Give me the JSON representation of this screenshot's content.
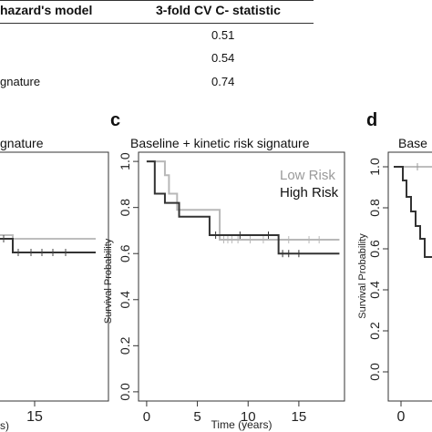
{
  "table": {
    "col1_header": "hazard's model",
    "col2_header": "3-fold CV C- statistic",
    "rows": [
      {
        "label": "",
        "value": "0.51"
      },
      {
        "label": "",
        "value": "0.54"
      },
      {
        "label": "gnature",
        "value": "0.74"
      }
    ]
  },
  "panels": {
    "b": {
      "title": "gnature",
      "x_tick": "15",
      "x_label_fragment": "s)"
    },
    "c": {
      "letter": "c",
      "title": "Baseline + kinetic risk signature"
    },
    "d": {
      "letter": "d",
      "title": "Base",
      "x_tick": "0",
      "y_label": "Survival Probability"
    }
  },
  "chart_data": [
    {
      "type": "line",
      "title": "Baseline + kinetic risk signature",
      "xlabel": "Time (years)",
      "ylabel": "Survival Probability",
      "xlim": [
        -0.8,
        19.5
      ],
      "ylim": [
        -0.04,
        1.04
      ],
      "x_ticks": [
        0,
        5,
        10,
        15
      ],
      "y_ticks": [
        0.0,
        0.2,
        0.4,
        0.6,
        0.8,
        1.0
      ],
      "y_tick_labels": [
        "0.0",
        "0.2",
        "0.4",
        "0.6",
        "0.8",
        "1.0"
      ],
      "legend_position": "top-right",
      "series": [
        {
          "name": "Low Risk",
          "color": "#b8b8b8",
          "x": [
            0,
            1.8,
            2.2,
            3.0,
            7.2,
            19
          ],
          "y": [
            1.0,
            0.94,
            0.86,
            0.79,
            0.66,
            0.66
          ],
          "censor_x": [
            7.6,
            8.0,
            8.4,
            9.0,
            10.2,
            11.5,
            13.0,
            14.0,
            16.0,
            17.0
          ]
        },
        {
          "name": "High Risk",
          "color": "#333333",
          "x": [
            0,
            0.8,
            1.8,
            3.2,
            6.2,
            13.0,
            19
          ],
          "y": [
            1.0,
            0.86,
            0.82,
            0.76,
            0.68,
            0.6,
            0.6
          ],
          "censor_x": [
            6.8,
            9.2,
            12.0,
            13.4,
            14.0,
            15.0
          ]
        }
      ]
    }
  ]
}
